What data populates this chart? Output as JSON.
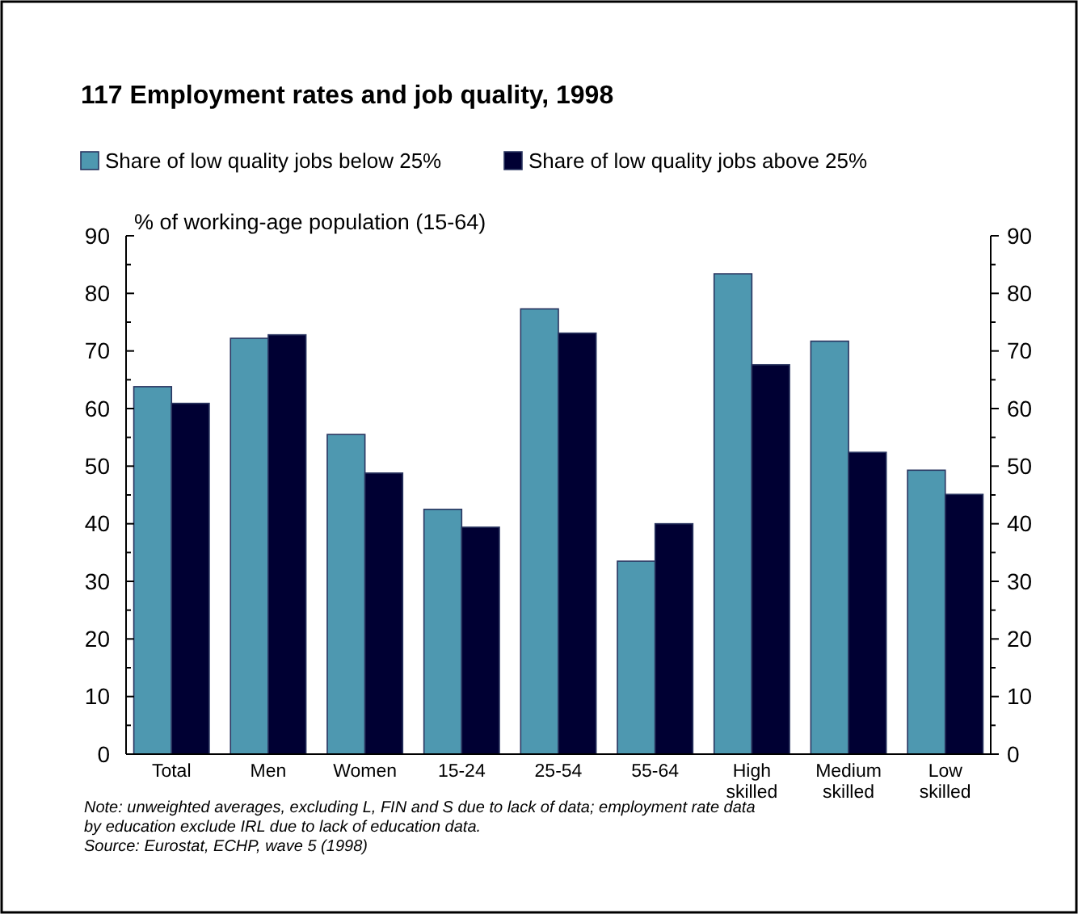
{
  "chart_data": {
    "type": "bar",
    "title": "117   Employment rates and job quality, 1998",
    "ylabel": "% of working-age population (15-64)",
    "categories": [
      "Total",
      "Men",
      "Women",
      "15-24",
      "25-54",
      "55-64",
      "High skilled",
      "Medium skilled",
      "Low skilled"
    ],
    "series": [
      {
        "name": "Share of low quality jobs below 25%",
        "color": "#4e98b0",
        "values": [
          63.8,
          72.2,
          55.5,
          42.5,
          77.3,
          33.5,
          83.4,
          71.7,
          49.3
        ]
      },
      {
        "name": "Share of low quality jobs above 25%",
        "color": "#000033",
        "values": [
          60.9,
          72.8,
          48.8,
          39.4,
          73.1,
          40,
          67.6,
          52.4,
          45.1
        ]
      }
    ],
    "ylim": [
      0,
      90
    ],
    "yticks": [
      0,
      {
        "value": 5,
        "label": null
      },
      10,
      {
        "value": 15,
        "label": null
      },
      20,
      {
        "value": 25,
        "label": null
      },
      30,
      {
        "value": 35,
        "label": null
      },
      40,
      {
        "value": 45,
        "label": null
      },
      50,
      {
        "value": 55,
        "label": null
      },
      60,
      {
        "value": 65,
        "label": null
      },
      70,
      {
        "value": 75,
        "label": null
      },
      80,
      {
        "value": 85,
        "label": null
      },
      90
    ],
    "y2lim": [
      0,
      90
    ],
    "y2ticks": [
      0,
      {
        "value": 5,
        "label": null
      },
      10,
      {
        "value": 15,
        "label": null
      },
      20,
      {
        "value": 25,
        "label": null
      },
      30,
      {
        "value": 35,
        "label": null
      },
      40,
      {
        "value": 45,
        "label": null
      },
      50,
      {
        "value": 55,
        "label": null
      },
      60,
      {
        "value": 65,
        "label": null
      },
      70,
      {
        "value": 75,
        "label": null
      },
      80,
      {
        "value": 85,
        "label": null
      },
      90
    ],
    "legend": "top left",
    "grid": false,
    "annotations": [
      "Note: unweighted averages, excluding L, FIN and S due to lack of data; employment rate data",
      "by education exclude IRL due to lack of education data.",
      "Source: Eurostat, ECHP, wave 5 (1998)"
    ]
  }
}
